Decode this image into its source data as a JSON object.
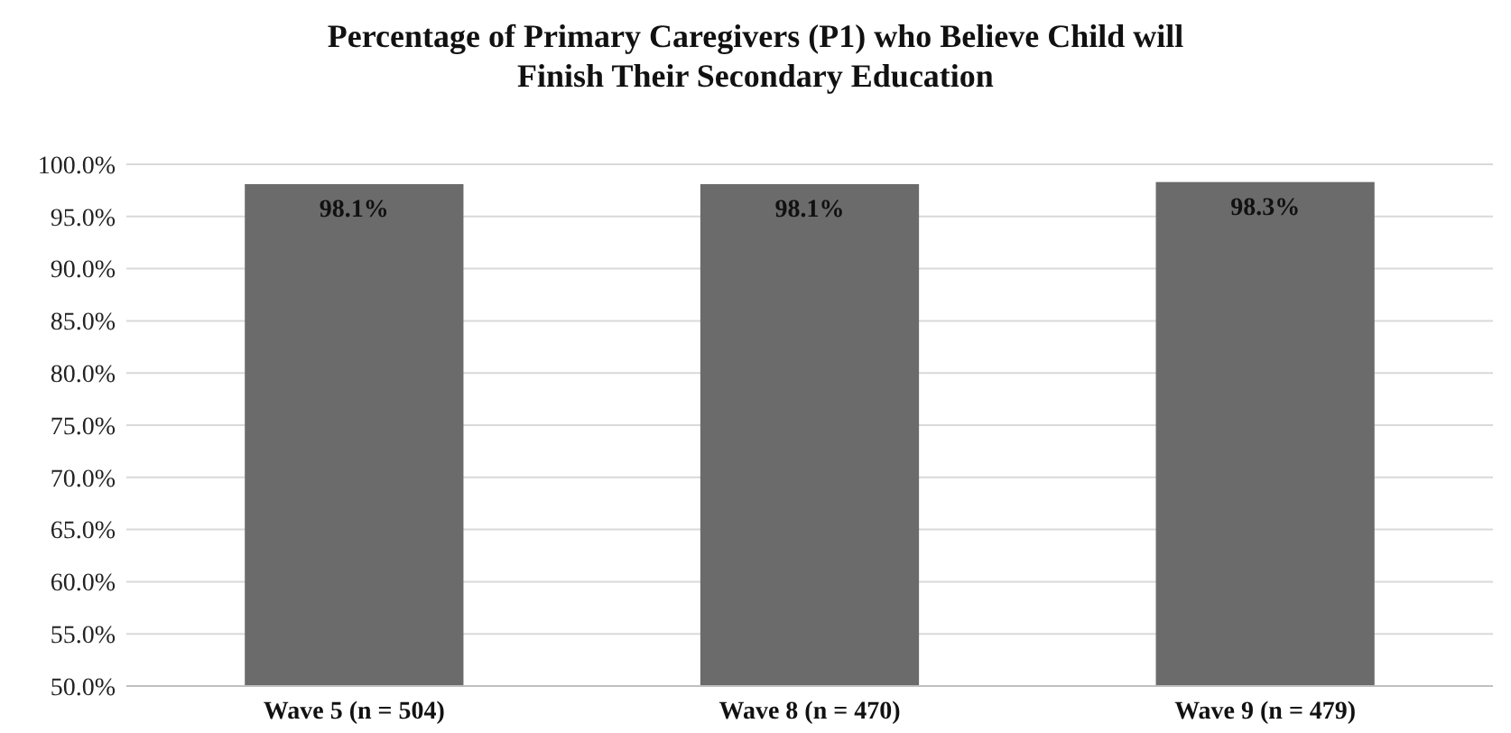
{
  "chart_data": {
    "type": "bar",
    "title": "Percentage of Primary Caregivers (P1) who Believe Child will\nFinish Their Secondary Education",
    "categories": [
      "Wave 5 (n = 504)",
      "Wave 8 (n = 470)",
      "Wave 9 (n = 479)"
    ],
    "values": [
      98.1,
      98.1,
      98.3
    ],
    "color": "#6b6b6b",
    "value_labels": [
      "98.1%",
      "98.1%",
      "98.3%"
    ],
    "ylim": [
      50,
      100
    ],
    "yticks": [
      {
        "value": 50,
        "label": "50.0%"
      },
      {
        "value": 55,
        "label": "55.0%"
      },
      {
        "value": 60,
        "label": "60.0%"
      },
      {
        "value": 65,
        "label": "65.0%"
      },
      {
        "value": 70,
        "label": "70.0%"
      },
      {
        "value": 75,
        "label": "75.0%"
      },
      {
        "value": 80,
        "label": "80.0%"
      },
      {
        "value": 85,
        "label": "85.0%"
      },
      {
        "value": 90,
        "label": "90.0%"
      },
      {
        "value": 95,
        "label": "95.0%"
      },
      {
        "value": 100,
        "label": "100.0%"
      }
    ],
    "grid": "y"
  }
}
